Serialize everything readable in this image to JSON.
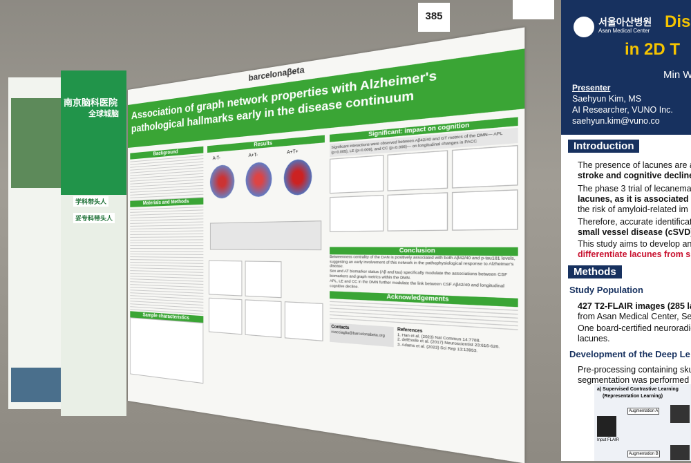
{
  "card_number": "385",
  "main_poster": {
    "logo": "barcelonaβeta",
    "title": "Association of graph network properties with Alzheimer's pathological hallmarks early in the disease continuum",
    "sections": {
      "background": "Background",
      "methods": "Materials and Methods",
      "sample": "Sample characteristics",
      "results": "Results",
      "impact": "Significant: impact on cognition",
      "conclusion": "Conclusion",
      "acknowledgements": "Acknowledgements",
      "contacts": "Contacts",
      "references": "References"
    },
    "network_labels": [
      "A-T-",
      "A+T-",
      "A+T+"
    ],
    "impact_text": "Significant interactions were observed between Aβ42/40 and GT metrics of the DMN— APL (p=0.005), LE (p=0.009), and CC (p=0.008)— on longitudinal changes in PACC",
    "conclusion_items": [
      "Betweenness centrality of the DAN is positively associated with both Aβ42/40 and p-tau181 levels, suggesting an early involvement of this network in the pathophysiological response to Alzheimer's disease.",
      "Sex and AT biomarker status (Aβ and tau) specifically modulate the associations between CSF biomarkers and graph metrics within the DMN.",
      "APL, LE and CC in the DMN further modulate the link between CSF Aβ42/40 and longitudinal cognitive decline."
    ],
    "contact_email": "rcacciaglia@barcelonabeta.org",
    "references": [
      "1. Han et al. (2023) Nat Commun 14:7788.",
      "2. delEssile et al. (2017) Neuroscientist 23:616-626.",
      "3. Adams et al. (2023) Sci Rep 13:13953."
    ]
  },
  "right_poster": {
    "hospital_ko": "서울아산병원",
    "hospital_en": "Asan Medical Center",
    "title_lines": [
      "Dis",
      "in 2D T"
    ],
    "author_partial": "Min W",
    "presenter_label": "Presenter",
    "presenter_name": "Saehyun Kim, MS",
    "presenter_role": "AI Researcher, VUNO Inc.",
    "presenter_email": "saehyun.kim@vuno.co",
    "introduction": "Introduction",
    "intro_lines": [
      "The presence of lacunes are a",
      "stroke and cognitive decline",
      "The phase 3 trial of lecanemab",
      "lacunes, as it is associated wi",
      "the risk of amyloid-related im",
      "Therefore, accurate identificati",
      "small vessel disease (cSVD)",
      "This study aims to develop an",
      "differentiate lacunes from si"
    ],
    "methods": "Methods",
    "study_population": "Study Population",
    "population_lines": [
      "427 T2-FLAIR images (285 la",
      "from Asan Medical Center, Seo",
      "One board-certified neuroradio",
      "lacunes."
    ],
    "development": "Development of the Deep Le",
    "development_lines": [
      "Pre-processing containing skul",
      "segmentation was performed u"
    ],
    "figure_title": "a) Supervised Contrastive Learning",
    "figure_subtitle": "(Representation Learning)",
    "figure_labels": [
      "Augmentation A",
      "Input FLAIR",
      "Augmentation B"
    ]
  },
  "left_poster": {
    "hospital": "南京脑科医院",
    "banner": "全球城脑",
    "tags": [
      "学科带头人",
      "妥专科带头人"
    ]
  }
}
